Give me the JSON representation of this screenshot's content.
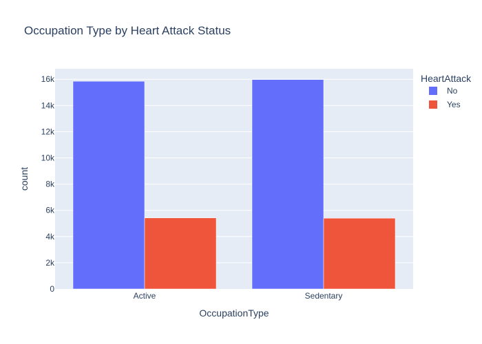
{
  "chart_data": {
    "type": "bar",
    "title": "Occupation Type by Heart Attack Status",
    "xlabel": "OccupationType",
    "ylabel": "count",
    "categories": [
      "Active",
      "Sedentary"
    ],
    "series": [
      {
        "name": "No",
        "values": [
          15850,
          15980
        ],
        "color": "#636efa"
      },
      {
        "name": "Yes",
        "values": [
          5420,
          5400
        ],
        "color": "#ef553b"
      }
    ],
    "ylim": [
      0,
      16800
    ],
    "yticks": [
      0,
      2000,
      4000,
      6000,
      8000,
      10000,
      12000,
      14000,
      16000
    ],
    "ytick_labels": [
      "0",
      "2k",
      "4k",
      "6k",
      "8k",
      "10k",
      "12k",
      "14k",
      "16k"
    ],
    "legend": {
      "title": "HeartAttack",
      "position": "top-right"
    },
    "grid": true,
    "colors": {
      "plot_bg": "#e5ecf6",
      "grid": "#ffffff",
      "text": "#2a3f5f"
    }
  }
}
